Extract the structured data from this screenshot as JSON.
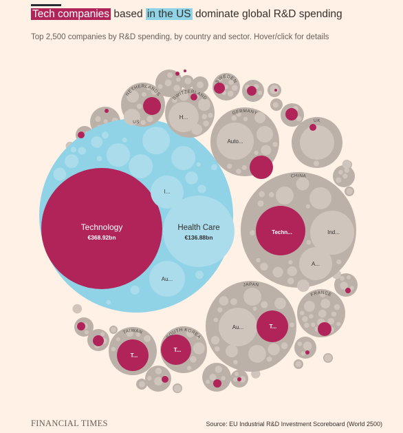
{
  "header": {
    "title_highlight_1": "Tech companies",
    "title_mid_1": "based",
    "title_highlight_2": "in the US",
    "title_end": "dominate global R&D spending",
    "subtitle": "Top 2,500 companies by R&D spending, by country and sector. Hover/click for details"
  },
  "footer": {
    "logo": "FINANCIAL TIMES",
    "source": "Source: EU Industrial R&D Investment Scoreboard (World 2500)"
  },
  "colors": {
    "background": "#fff1e5",
    "tech": "#b0245a",
    "us_country": "#90d3e6",
    "us_sector": "#aadcec",
    "country": "#bcb1a9",
    "sector": "#cfc5bd"
  },
  "chart_data": {
    "type": "packed-bubble",
    "title": "Tech companies based in the US dominate global R&D spending",
    "country_labels": [
      "US",
      "NETHERLANDS",
      "SWITZERLAND",
      "SWEDEN",
      "GERMANY",
      "UK",
      "CHINA",
      "JAPAN",
      "FRANCE",
      "TAIWAN",
      "SOUTH KOREA"
    ],
    "sector_labels": [
      {
        "country": "US",
        "sector": "Technology",
        "value_label": "€368.92bn"
      },
      {
        "country": "US",
        "sector": "Health Care",
        "value_label": "€136.88bn"
      },
      {
        "country": "US",
        "sector": "I..."
      },
      {
        "country": "US",
        "sector": "Au..."
      },
      {
        "country": "SWITZERLAND",
        "sector": "H..."
      },
      {
        "country": "GERMANY",
        "sector": "Auto..."
      },
      {
        "country": "CHINA",
        "sector": "Techn..."
      },
      {
        "country": "CHINA",
        "sector": "Ind..."
      },
      {
        "country": "CHINA",
        "sector": "A..."
      },
      {
        "country": "JAPAN",
        "sector": "Au..."
      },
      {
        "country": "JAPAN",
        "sector": "T..."
      },
      {
        "country": "TAIWAN",
        "sector": "T..."
      },
      {
        "country": "SOUTH KOREA",
        "sector": "T..."
      }
    ]
  }
}
